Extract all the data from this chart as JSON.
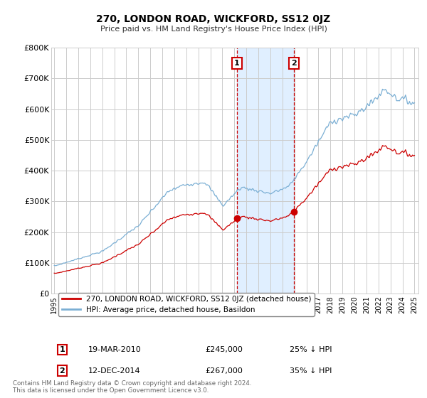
{
  "title": "270, LONDON ROAD, WICKFORD, SS12 0JZ",
  "subtitle": "Price paid vs. HM Land Registry's House Price Index (HPI)",
  "ylabel_ticks": [
    "£0",
    "£100K",
    "£200K",
    "£300K",
    "£400K",
    "£500K",
    "£600K",
    "£700K",
    "£800K"
  ],
  "ytick_values": [
    0,
    100000,
    200000,
    300000,
    400000,
    500000,
    600000,
    700000,
    800000
  ],
  "ylim": [
    0,
    800000
  ],
  "red_line_color": "#cc0000",
  "blue_line_color": "#7bafd4",
  "marker1_date": 2010.21,
  "marker2_date": 2014.95,
  "marker1_price": 245000,
  "marker2_price": 267000,
  "marker1_label": "19-MAR-2010",
  "marker1_price_str": "£245,000",
  "marker1_pct": "25% ↓ HPI",
  "marker2_label": "12-DEC-2014",
  "marker2_price_str": "£267,000",
  "marker2_pct": "35% ↓ HPI",
  "legend_label_red": "270, LONDON ROAD, WICKFORD, SS12 0JZ (detached house)",
  "legend_label_blue": "HPI: Average price, detached house, Basildon",
  "footer": "Contains HM Land Registry data © Crown copyright and database right 2024.\nThis data is licensed under the Open Government Licence v3.0.",
  "background_color": "#ffffff",
  "grid_color": "#cccccc",
  "annotation_box_color": "#cc0000",
  "shade_color": "#ddeeff",
  "xtick_years": [
    1995,
    1996,
    1997,
    1998,
    1999,
    2000,
    2001,
    2002,
    2003,
    2004,
    2005,
    2006,
    2007,
    2008,
    2009,
    2010,
    2011,
    2012,
    2013,
    2014,
    2015,
    2016,
    2017,
    2018,
    2019,
    2020,
    2021,
    2022,
    2023,
    2024,
    2025
  ]
}
